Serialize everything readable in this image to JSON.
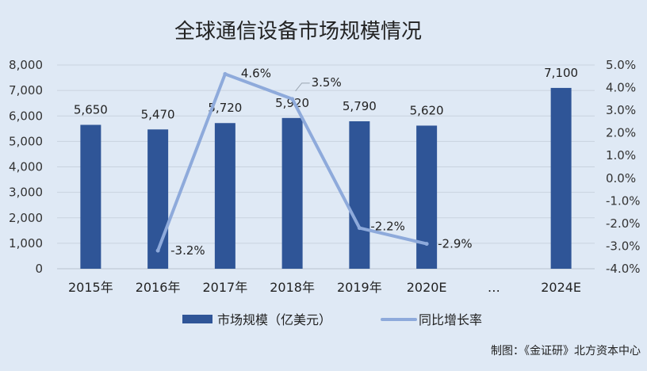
{
  "chart_data": {
    "type": "bar",
    "title": "全球通信设备市场规模情况",
    "categories": [
      "2015年",
      "2016年",
      "2017年",
      "2018年",
      "2019年",
      "2020E",
      "…",
      "2024E"
    ],
    "series": [
      {
        "name": "市场规模（亿美元）",
        "type": "bar",
        "axis": "left",
        "values": [
          5650,
          5470,
          5720,
          5920,
          5790,
          5620,
          null,
          7100
        ],
        "labels": [
          "5,650",
          "5,470",
          "5,720",
          "5,920",
          "5,790",
          "5,620",
          "",
          "7,100"
        ],
        "color": "#2f5597"
      },
      {
        "name": "同比增长率",
        "type": "line",
        "axis": "right",
        "values": [
          null,
          -3.2,
          4.6,
          3.5,
          -2.2,
          -2.9,
          null,
          null
        ],
        "labels": [
          "",
          "-3.2%",
          "4.6%",
          "3.5%",
          "-2.2%",
          "-2.9%",
          "",
          ""
        ],
        "color": "#8eaadb"
      }
    ],
    "y_left": {
      "min": 0,
      "max": 8000,
      "step": 1000,
      "tick_labels": [
        "0",
        "1,000",
        "2,000",
        "3,000",
        "4,000",
        "5,000",
        "6,000",
        "7,000",
        "8,000"
      ]
    },
    "y_right": {
      "min": -4.0,
      "max": 5.0,
      "step": 1.0,
      "tick_labels": [
        "-4.0%",
        "-3.0%",
        "-2.0%",
        "-1.0%",
        "0.0%",
        "1.0%",
        "2.0%",
        "3.0%",
        "4.0%",
        "5.0%"
      ]
    },
    "grid": true,
    "legend_position": "bottom",
    "source": "制图：《金证研》北方资本中心"
  }
}
